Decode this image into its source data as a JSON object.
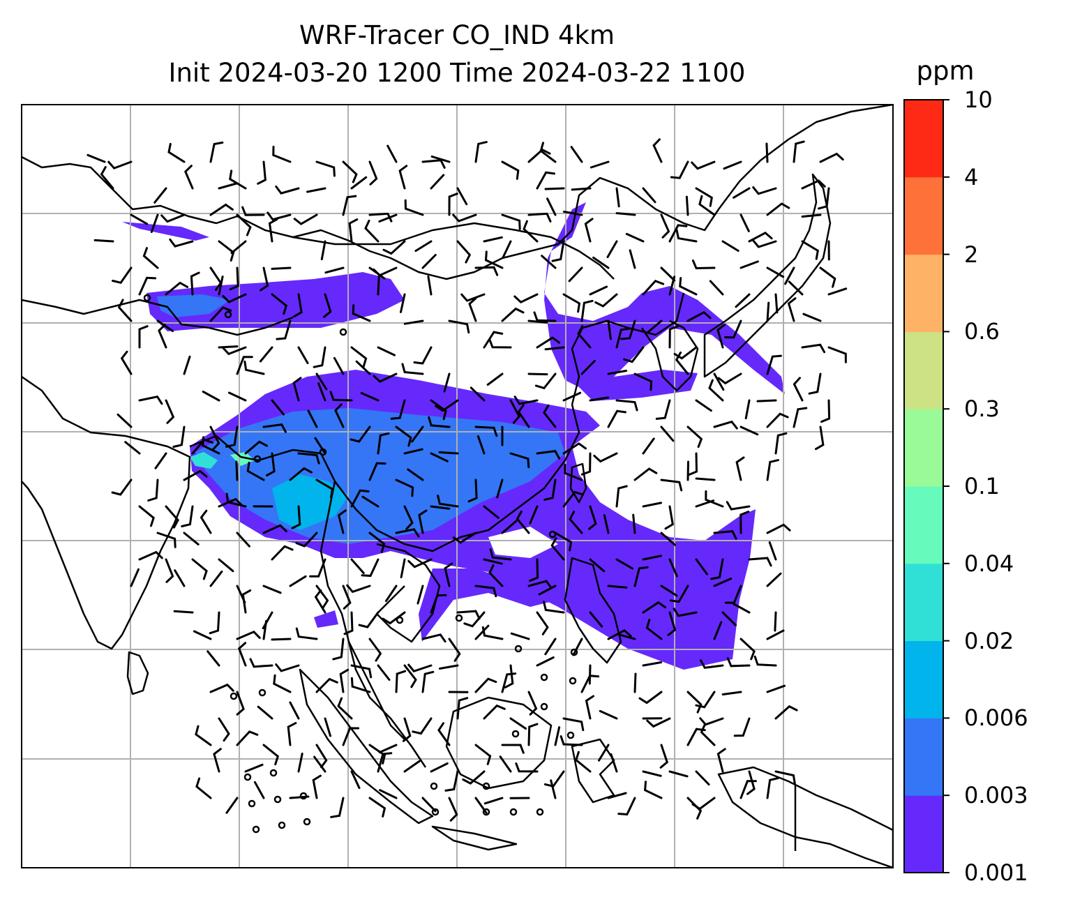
{
  "title": {
    "line1": "WRF-Tracer CO_IND 4km",
    "line2": "Init 2024-03-20 1200 Time 2024-03-22 1100"
  },
  "colorbar": {
    "unit": "ppm",
    "levels": [
      "0.001",
      "0.003",
      "0.006",
      "0.02",
      "0.04",
      "0.1",
      "0.3",
      "0.6",
      "2",
      "4",
      "10"
    ],
    "colors": [
      "#6529fb",
      "#3476f6",
      "#01b4eb",
      "#30e0d7",
      "#67fabd",
      "#9afa97",
      "#cde185",
      "#fdb265",
      "#fe7139",
      "#fe2a16"
    ]
  },
  "map": {
    "land_color": "#ffffff",
    "coastline_color": "#000000",
    "gridline_color": "#b0b0b0",
    "gridlines": true
  },
  "wind": {
    "barb_color": "#000000",
    "calm_symbol": "circle"
  }
}
